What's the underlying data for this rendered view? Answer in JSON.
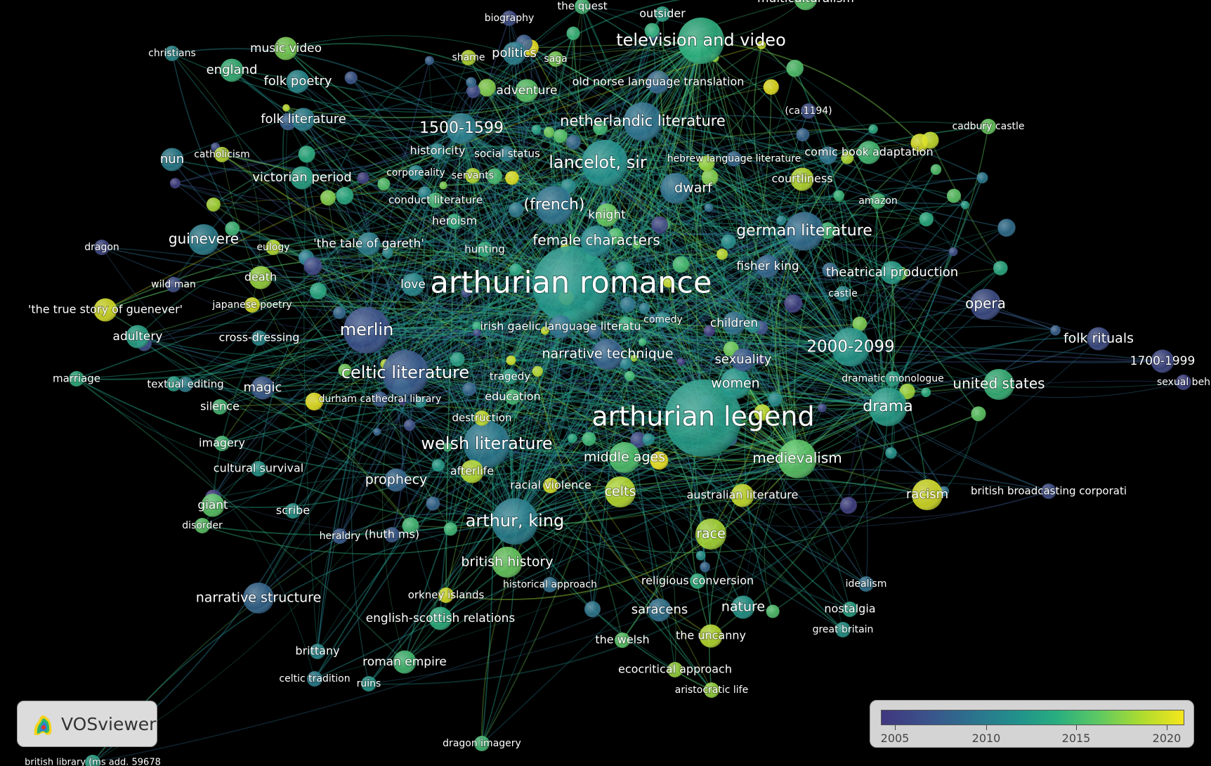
{
  "app": "VOSviewer",
  "colors": {
    "background": "#000000",
    "scale_low": "#40377f",
    "scale_mid": "#21a685",
    "scale_high": "#f5e51b"
  },
  "legend": {
    "ticks": [
      "2005",
      "2010",
      "2015",
      "2020"
    ]
  },
  "chart_data": {
    "type": "network",
    "color_scale": {
      "min": 2004,
      "max": 2021,
      "ticks": [
        2005,
        2010,
        2015,
        2020
      ]
    },
    "nodes": [
      {
        "label": "arthurian romance",
        "year": 2012,
        "weight": 10
      },
      {
        "label": "arthurian legend",
        "year": 2012.5,
        "weight": 10
      },
      {
        "label": "television and video",
        "year": 2014,
        "weight": 6
      },
      {
        "label": "lancelot, sir",
        "year": 2011.5,
        "weight": 6
      },
      {
        "label": "netherlandic literature",
        "year": 2009,
        "weight": 5
      },
      {
        "label": "german literature",
        "year": 2008.5,
        "weight": 5
      },
      {
        "label": "welsh literature",
        "year": 2009.5,
        "weight": 6
      },
      {
        "label": "celtic literature",
        "year": 2007,
        "weight": 6
      },
      {
        "label": "merlin",
        "year": 2006.5,
        "weight": 6
      },
      {
        "label": "arthur, king",
        "year": 2010,
        "weight": 6
      },
      {
        "label": "2000-2099",
        "year": 2012,
        "weight": 5
      },
      {
        "label": "1500-1599",
        "year": 2010,
        "weight": 4
      },
      {
        "label": "drama",
        "year": 2012.5,
        "weight": 5
      },
      {
        "label": "medievalism",
        "year": 2016,
        "weight": 5
      },
      {
        "label": "guinevere",
        "year": 2010,
        "weight": 4
      },
      {
        "label": "(french)",
        "year": 2009,
        "weight": 5
      },
      {
        "label": "female characters",
        "year": 2011,
        "weight": 4
      },
      {
        "label": "opera",
        "year": 2006,
        "weight": 4
      },
      {
        "label": "united states",
        "year": 2014.5,
        "weight": 4
      },
      {
        "label": "narrative technique",
        "year": 2007.5,
        "weight": 4
      },
      {
        "label": "narrative structure",
        "year": 2008,
        "weight": 4
      },
      {
        "label": "middle ages",
        "year": 2015.5,
        "weight": 4
      },
      {
        "label": "celts",
        "year": 2019,
        "weight": 4
      },
      {
        "label": "race",
        "year": 2018.5,
        "weight": 4
      },
      {
        "label": "racism",
        "year": 2020,
        "weight": 4
      },
      {
        "label": "dwarf",
        "year": 2009,
        "weight": 4
      },
      {
        "label": "women",
        "year": 2012,
        "weight": 4
      },
      {
        "label": "prophecy",
        "year": 2008,
        "weight": 3
      },
      {
        "label": "british history",
        "year": 2016.5,
        "weight": 4
      },
      {
        "label": "folk rituals",
        "year": 2006,
        "weight": 3
      },
      {
        "label": "1700-1999",
        "year": 2005.5,
        "weight": 3
      },
      {
        "label": "theatrical production",
        "year": 2012.5,
        "weight": 3
      },
      {
        "label": "fisher king",
        "year": 2008,
        "weight": 3
      },
      {
        "label": "folk poetry",
        "year": 2011,
        "weight": 3
      },
      {
        "label": "folk literature",
        "year": 2010,
        "weight": 3
      },
      {
        "label": "england",
        "year": 2014.5,
        "weight": 3
      },
      {
        "label": "music video",
        "year": 2017,
        "weight": 3
      },
      {
        "label": "politics",
        "year": 2010,
        "weight": 3
      },
      {
        "label": "adventure",
        "year": 2016,
        "weight": 3
      },
      {
        "label": "victorian period",
        "year": 2013,
        "weight": 3
      },
      {
        "label": "nun",
        "year": 2010,
        "weight": 3
      },
      {
        "label": "nature",
        "year": 2012,
        "weight": 3
      },
      {
        "label": "saracens",
        "year": 2009,
        "weight": 3
      },
      {
        "label": "sexuality",
        "year": 2007,
        "weight": 3
      },
      {
        "label": "adultery",
        "year": 2013,
        "weight": 3
      },
      {
        "label": "magic",
        "year": 2007,
        "weight": 3
      },
      {
        "label": "love",
        "year": 2011,
        "weight": 3
      },
      {
        "label": "knight",
        "year": 2016.5,
        "weight": 3
      },
      {
        "label": "children",
        "year": 2009,
        "weight": 3
      },
      {
        "label": "comedy",
        "year": 2011,
        "weight": 2
      },
      {
        "label": "old norse language translation",
        "year": 2008,
        "weight": 3
      },
      {
        "label": "comic book adaptation",
        "year": 2015,
        "weight": 3
      },
      {
        "label": "courtliness",
        "year": 2019,
        "weight": 3
      },
      {
        "label": "hebrew language literature",
        "year": 2008,
        "weight": 2
      },
      {
        "label": "'the tale of gareth'",
        "year": 2010,
        "weight": 3
      },
      {
        "label": "heroism",
        "year": 2014,
        "weight": 2
      },
      {
        "label": "conduct literature",
        "year": 2015,
        "weight": 2
      },
      {
        "label": "hunting",
        "year": 2014,
        "weight": 2
      },
      {
        "label": "historicity",
        "year": 2011,
        "weight": 2
      },
      {
        "label": "social status",
        "year": 2010,
        "weight": 2
      },
      {
        "label": "corporeality",
        "year": 2011,
        "weight": 2
      },
      {
        "label": "servants",
        "year": 2019,
        "weight": 2
      },
      {
        "label": "catholicism",
        "year": 2019,
        "weight": 2
      },
      {
        "label": "christians",
        "year": 2011,
        "weight": 2
      },
      {
        "label": "biography",
        "year": 2006,
        "weight": 2
      },
      {
        "label": "the quest",
        "year": 2015,
        "weight": 2
      },
      {
        "label": "outsider",
        "year": 2013,
        "weight": 2
      },
      {
        "label": "multiculturalism",
        "year": 2016,
        "weight": 3
      },
      {
        "label": "shame",
        "year": 2019,
        "weight": 2
      },
      {
        "label": "saga",
        "year": 2017,
        "weight": 2
      },
      {
        "label": "(ca.1194)",
        "year": 2006,
        "weight": 2
      },
      {
        "label": "cadbury castle",
        "year": 2016.5,
        "weight": 2
      },
      {
        "label": "amazon",
        "year": 2015,
        "weight": 2
      },
      {
        "label": "castle",
        "year": 2011,
        "weight": 2
      },
      {
        "label": "irish gaelic language literatu",
        "year": 2009,
        "weight": 3
      },
      {
        "label": "tragedy",
        "year": 2013,
        "weight": 2
      },
      {
        "label": "education",
        "year": 2015,
        "weight": 2
      },
      {
        "label": "destruction",
        "year": 2019.5,
        "weight": 2
      },
      {
        "label": "durham cathedral library",
        "year": 2007,
        "weight": 2
      },
      {
        "label": "dramatic monologue",
        "year": 2013,
        "weight": 2
      },
      {
        "label": "sexual beh",
        "year": 2005,
        "weight": 2
      },
      {
        "label": "british broadcasting corporati",
        "year": 2006,
        "weight": 2
      },
      {
        "label": "australian literature",
        "year": 2019.5,
        "weight": 3
      },
      {
        "label": "racial violence",
        "year": 2020,
        "weight": 2
      },
      {
        "label": "afterlife",
        "year": 2019,
        "weight": 3
      },
      {
        "label": "religious conversion",
        "year": 2014,
        "weight": 2
      },
      {
        "label": "historical approach",
        "year": 2009,
        "weight": 2
      },
      {
        "label": "orkney islands",
        "year": 2020,
        "weight": 2
      },
      {
        "label": "english-scottish relations",
        "year": 2014,
        "weight": 3
      },
      {
        "label": "the welsh",
        "year": 2016,
        "weight": 2
      },
      {
        "label": "the uncanny",
        "year": 2019,
        "weight": 3
      },
      {
        "label": "ecocritical approach",
        "year": 2018,
        "weight": 2
      },
      {
        "label": "aristocratic life",
        "year": 2018,
        "weight": 2
      },
      {
        "label": "idealism",
        "year": 2009,
        "weight": 2
      },
      {
        "label": "nostalgia",
        "year": 2013,
        "weight": 2
      },
      {
        "label": "great britain",
        "year": 2012,
        "weight": 2
      },
      {
        "label": "brittany",
        "year": 2011,
        "weight": 2
      },
      {
        "label": "roman empire",
        "year": 2015,
        "weight": 3
      },
      {
        "label": "celtic tradition",
        "year": 2010,
        "weight": 2
      },
      {
        "label": "ruins",
        "year": 2012,
        "weight": 2
      },
      {
        "label": "dragon imagery",
        "year": 2015,
        "weight": 2
      },
      {
        "label": "british library (ms add. 59678",
        "year": 2013,
        "weight": 2
      },
      {
        "label": "heraldry",
        "year": 2007,
        "weight": 2
      },
      {
        "label": "(huth ms)",
        "year": 2007,
        "weight": 2
      },
      {
        "label": "scribe",
        "year": 2012,
        "weight": 2
      },
      {
        "label": "giant",
        "year": 2016,
        "weight": 3
      },
      {
        "label": "disorder",
        "year": 2016,
        "weight": 2
      },
      {
        "label": "cultural survival",
        "year": 2012,
        "weight": 2
      },
      {
        "label": "imagery",
        "year": 2015,
        "weight": 2
      },
      {
        "label": "silence",
        "year": 2015,
        "weight": 2
      },
      {
        "label": "textual editing",
        "year": 2010,
        "weight": 2
      },
      {
        "label": "marriage",
        "year": 2014,
        "weight": 2
      },
      {
        "label": "cross-dressing",
        "year": 2011,
        "weight": 2
      },
      {
        "label": "japanese poetry",
        "year": 2020,
        "weight": 2
      },
      {
        "label": "'the true story of guenever'",
        "year": 2020,
        "weight": 3
      },
      {
        "label": "death",
        "year": 2018,
        "weight": 3
      },
      {
        "label": "wild man",
        "year": 2006,
        "weight": 2
      },
      {
        "label": "eulogy",
        "year": 2019,
        "weight": 2
      },
      {
        "label": "dragon",
        "year": 2005.5,
        "weight": 2
      }
    ]
  }
}
